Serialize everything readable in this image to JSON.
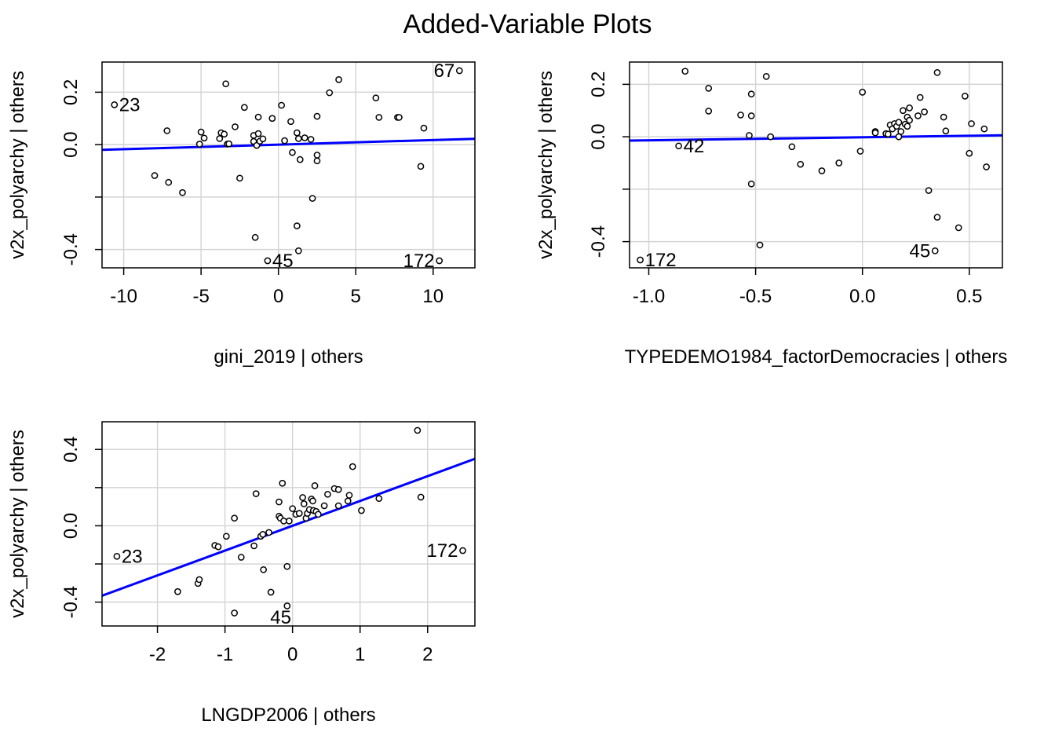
{
  "figure_title": "Added-Variable Plots",
  "chart_data": [
    {
      "type": "scatter",
      "title": "",
      "xlabel": "gini_2019 | others",
      "ylabel": "v2x_polyarchy  | others",
      "xlim": [
        -11.4,
        12.7
      ],
      "ylim": [
        -0.47,
        0.315
      ],
      "xticks": [
        -10,
        -5,
        0,
        5,
        10
      ],
      "xtick_labels": [
        "-10",
        "-5",
        "0",
        "5",
        "10"
      ],
      "yticks": [
        -0.4,
        -0.2,
        0.0,
        0.2
      ],
      "ytick_labels": [
        "-0.4",
        "",
        "0.0",
        "0.2"
      ],
      "grid": true,
      "fit_line": {
        "intercept": 0.0,
        "slope": 0.00175
      },
      "points": [
        [
          -10.6,
          0.152
        ],
        [
          -7.2,
          0.053
        ],
        [
          -8.0,
          -0.118
        ],
        [
          -7.1,
          -0.144
        ],
        [
          -6.2,
          -0.183
        ],
        [
          -5.0,
          0.048
        ],
        [
          -5.1,
          0.002
        ],
        [
          -4.8,
          0.025
        ],
        [
          -3.7,
          0.045
        ],
        [
          -3.8,
          0.023
        ],
        [
          -3.5,
          0.04
        ],
        [
          -3.3,
          0.002
        ],
        [
          -3.2,
          0.003
        ],
        [
          -3.4,
          0.232
        ],
        [
          -2.8,
          0.068
        ],
        [
          -2.5,
          -0.128
        ],
        [
          -2.2,
          0.142
        ],
        [
          -1.6,
          0.035
        ],
        [
          -1.6,
          0.012
        ],
        [
          -1.3,
          0.042
        ],
        [
          -1.4,
          -0.003
        ],
        [
          -1.2,
          0.013
        ],
        [
          -1.0,
          0.022
        ],
        [
          -1.3,
          0.105
        ],
        [
          -0.4,
          0.1
        ],
        [
          -1.5,
          -0.354
        ],
        [
          -0.7,
          -0.443
        ],
        [
          0.2,
          0.15
        ],
        [
          0.4,
          0.015
        ],
        [
          0.9,
          -0.03
        ],
        [
          0.8,
          0.088
        ],
        [
          1.2,
          0.045
        ],
        [
          1.3,
          0.023
        ],
        [
          1.4,
          -0.057
        ],
        [
          1.7,
          0.026
        ],
        [
          2.1,
          0.02
        ],
        [
          2.5,
          0.108
        ],
        [
          2.5,
          -0.062
        ],
        [
          2.5,
          -0.04
        ],
        [
          2.2,
          -0.205
        ],
        [
          1.2,
          -0.31
        ],
        [
          1.3,
          -0.405
        ],
        [
          3.3,
          0.198
        ],
        [
          3.9,
          0.248
        ],
        [
          6.3,
          0.178
        ],
        [
          6.5,
          0.104
        ],
        [
          7.7,
          0.104
        ],
        [
          7.8,
          0.104
        ],
        [
          9.4,
          0.063
        ],
        [
          9.2,
          -0.083
        ],
        [
          10.4,
          -0.443
        ],
        [
          11.7,
          0.282
        ]
      ],
      "point_labels": [
        {
          "text": "23",
          "x": -10.6,
          "y": 0.152,
          "side": "right"
        },
        {
          "text": "67",
          "x": 11.7,
          "y": 0.282,
          "side": "left"
        },
        {
          "text": "45",
          "x": -0.7,
          "y": -0.443,
          "side": "right"
        },
        {
          "text": "172",
          "x": 10.4,
          "y": -0.443,
          "side": "left"
        }
      ]
    },
    {
      "type": "scatter",
      "title": "",
      "xlabel": "TYPEDEMO1984_factorDemocracies | others",
      "ylabel": "v2x_polyarchy  | others",
      "xlim": [
        -1.09,
        0.655
      ],
      "ylim": [
        -0.5,
        0.285
      ],
      "xticks": [
        -1.0,
        -0.5,
        0.0,
        0.5
      ],
      "xtick_labels": [
        "-1.0",
        "-0.5",
        "0.0",
        "0.5"
      ],
      "yticks": [
        -0.4,
        -0.2,
        0.0,
        0.2
      ],
      "ytick_labels": [
        "-0.4",
        "",
        "0.0",
        "0.2"
      ],
      "grid": true,
      "fit_line": {
        "intercept": -0.002,
        "slope": 0.0115
      },
      "points": [
        [
          -1.04,
          -0.47
        ],
        [
          -0.86,
          -0.035
        ],
        [
          -0.83,
          0.25
        ],
        [
          -0.72,
          0.185
        ],
        [
          -0.72,
          0.098
        ],
        [
          -0.57,
          0.083
        ],
        [
          -0.52,
          0.163
        ],
        [
          -0.52,
          0.08
        ],
        [
          -0.53,
          0.005
        ],
        [
          -0.52,
          -0.18
        ],
        [
          -0.48,
          -0.413
        ],
        [
          -0.45,
          0.23
        ],
        [
          -0.43,
          0.0
        ],
        [
          -0.33,
          -0.038
        ],
        [
          -0.29,
          -0.105
        ],
        [
          -0.19,
          -0.13
        ],
        [
          -0.11,
          -0.1
        ],
        [
          -0.01,
          -0.055
        ],
        [
          0.0,
          0.17
        ],
        [
          0.06,
          0.02
        ],
        [
          0.06,
          0.015
        ],
        [
          0.11,
          0.012
        ],
        [
          0.12,
          0.01
        ],
        [
          0.13,
          0.045
        ],
        [
          0.14,
          0.03
        ],
        [
          0.15,
          0.05
        ],
        [
          0.16,
          0.04
        ],
        [
          0.17,
          0.0
        ],
        [
          0.17,
          0.055
        ],
        [
          0.18,
          0.02
        ],
        [
          0.19,
          0.1
        ],
        [
          0.2,
          0.048
        ],
        [
          0.21,
          0.04
        ],
        [
          0.21,
          0.075
        ],
        [
          0.22,
          0.11
        ],
        [
          0.22,
          0.063
        ],
        [
          0.26,
          0.08
        ],
        [
          0.27,
          0.15
        ],
        [
          0.29,
          0.095
        ],
        [
          0.31,
          -0.205
        ],
        [
          0.34,
          -0.435
        ],
        [
          0.35,
          0.245
        ],
        [
          0.35,
          -0.307
        ],
        [
          0.38,
          0.075
        ],
        [
          0.39,
          0.022
        ],
        [
          0.45,
          -0.347
        ],
        [
          0.48,
          0.155
        ],
        [
          0.5,
          -0.063
        ],
        [
          0.51,
          0.05
        ],
        [
          0.57,
          0.03
        ],
        [
          0.58,
          -0.115
        ]
      ],
      "point_labels": [
        {
          "text": "42",
          "x": -0.86,
          "y": -0.035,
          "side": "right"
        },
        {
          "text": "45",
          "x": 0.34,
          "y": -0.435,
          "side": "left"
        },
        {
          "text": "172",
          "x": -1.04,
          "y": -0.47,
          "side": "right"
        }
      ]
    },
    {
      "type": "scatter",
      "title": "",
      "xlabel": "LNGDP2006 | others",
      "ylabel": "v2x_polyarchy  | others",
      "xlim": [
        -2.82,
        2.7
      ],
      "ylim": [
        -0.525,
        0.545
      ],
      "xticks": [
        -2,
        -1,
        0,
        1,
        2
      ],
      "xtick_labels": [
        "-2",
        "-1",
        "0",
        "1",
        "2"
      ],
      "yticks": [
        -0.4,
        -0.2,
        0.0,
        0.2,
        0.4
      ],
      "ytick_labels": [
        "-0.4",
        "",
        "0.0",
        "",
        "0.4"
      ],
      "grid": true,
      "fit_line": {
        "intercept": 0.0,
        "slope": 0.13
      },
      "points": [
        [
          -2.6,
          -0.16
        ],
        [
          -1.7,
          -0.345
        ],
        [
          -1.4,
          -0.302
        ],
        [
          -1.38,
          -0.282
        ],
        [
          -1.15,
          -0.103
        ],
        [
          -1.1,
          -0.11
        ],
        [
          -0.98,
          -0.055
        ],
        [
          -0.86,
          0.04
        ],
        [
          -0.86,
          -0.457
        ],
        [
          -0.76,
          -0.165
        ],
        [
          -0.57,
          -0.105
        ],
        [
          -0.54,
          0.168
        ],
        [
          -0.47,
          -0.055
        ],
        [
          -0.44,
          -0.045
        ],
        [
          -0.43,
          -0.23
        ],
        [
          -0.35,
          -0.035
        ],
        [
          -0.32,
          -0.348
        ],
        [
          -0.2,
          0.125
        ],
        [
          -0.2,
          0.05
        ],
        [
          -0.18,
          0.04
        ],
        [
          -0.15,
          0.223
        ],
        [
          -0.13,
          0.025
        ],
        [
          -0.08,
          -0.213
        ],
        [
          -0.08,
          -0.42
        ],
        [
          -0.05,
          0.025
        ],
        [
          0.0,
          0.09
        ],
        [
          0.05,
          0.06
        ],
        [
          0.1,
          0.065
        ],
        [
          0.15,
          0.148
        ],
        [
          0.17,
          0.115
        ],
        [
          0.2,
          0.04
        ],
        [
          0.22,
          0.065
        ],
        [
          0.25,
          0.085
        ],
        [
          0.28,
          0.14
        ],
        [
          0.3,
          0.13
        ],
        [
          0.31,
          0.08
        ],
        [
          0.33,
          0.21
        ],
        [
          0.35,
          0.075
        ],
        [
          0.38,
          0.06
        ],
        [
          0.47,
          0.105
        ],
        [
          0.52,
          0.165
        ],
        [
          0.62,
          0.195
        ],
        [
          0.68,
          0.105
        ],
        [
          0.68,
          0.19
        ],
        [
          0.82,
          0.13
        ],
        [
          0.84,
          0.16
        ],
        [
          0.89,
          0.31
        ],
        [
          1.02,
          0.08
        ],
        [
          1.28,
          0.143
        ],
        [
          1.85,
          0.5
        ],
        [
          1.9,
          0.15
        ],
        [
          2.52,
          -0.13
        ]
      ],
      "point_labels": [
        {
          "text": "23",
          "x": -2.6,
          "y": -0.16,
          "side": "right"
        },
        {
          "text": "45",
          "x": -0.4,
          "y": -0.48,
          "side": "right"
        },
        {
          "text": "172",
          "x": 2.52,
          "y": -0.13,
          "side": "left"
        }
      ]
    }
  ]
}
